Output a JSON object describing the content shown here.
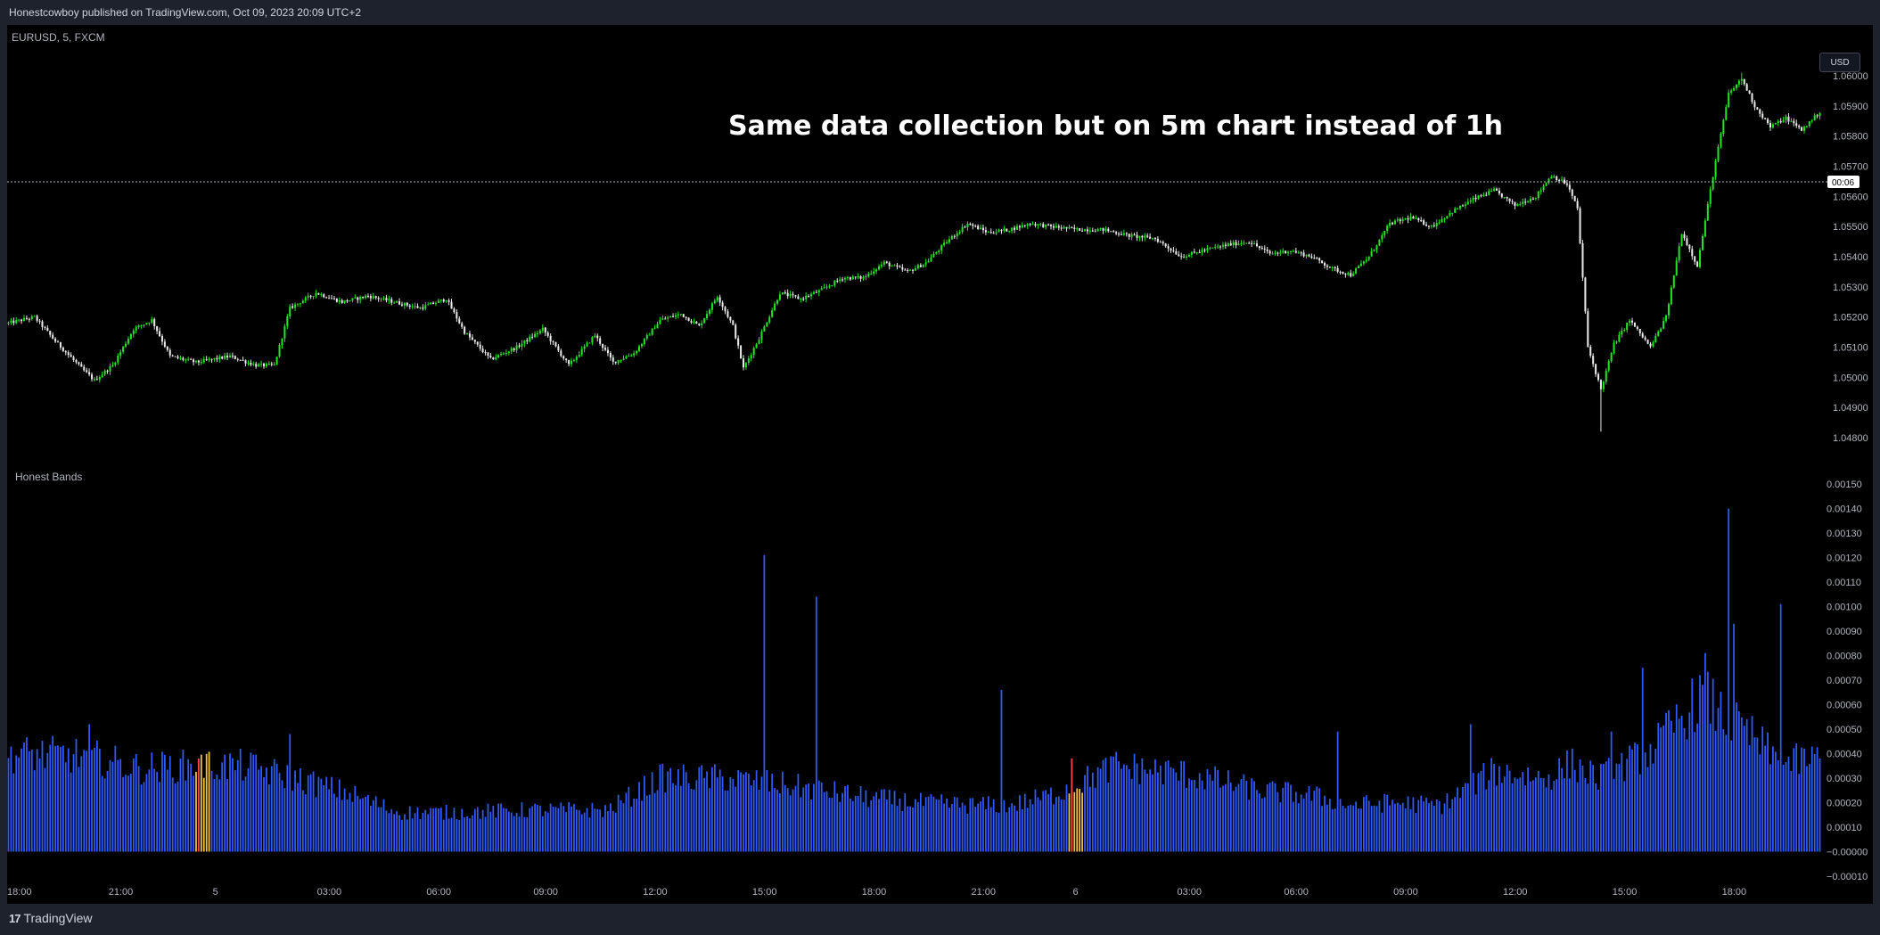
{
  "header": {
    "published_text": "Honestcowboy published on TradingView.com, Oct 09, 2023 20:09 UTC+2"
  },
  "footer": {
    "logo_mark": "17",
    "logo_text": "TradingView"
  },
  "price_scale": {
    "currency_button": "USD",
    "countdown_label": "00:06"
  },
  "colors": {
    "background": "#000000",
    "candle_up": "#22e422",
    "candle_down": "#e8e8e8",
    "histogram": "#2f5bff",
    "histogram_alert": "#f5c542",
    "histogram_alert_tip": "#ff4b4b",
    "price_line": "#b2b5be"
  },
  "chart_data": [
    {
      "type": "candlestick",
      "symbol_label": "EURUSD, 5, FXCM",
      "annotation": "Same data collection but on 5m chart instead of 1h",
      "timeframe": "5m",
      "x_tick_labels": [
        "18:00",
        "21:00",
        "5",
        "03:00",
        "06:00",
        "09:00",
        "12:00",
        "15:00",
        "18:00",
        "21:00",
        "6",
        "03:00",
        "06:00",
        "09:00",
        "12:00",
        "15:00",
        "18:00"
      ],
      "y_tick_labels": [
        "1.06000",
        "1.05900",
        "1.05800",
        "1.05700",
        "1.05600",
        "1.05500",
        "1.05400",
        "1.05300",
        "1.05200",
        "1.05100",
        "1.05000",
        "1.04900",
        "1.04800"
      ],
      "ylim": [
        1.0475,
        1.0605
      ],
      "current_price_line": 1.05648,
      "close_path": [
        [
          0,
          1.0518
        ],
        [
          10,
          1.052
        ],
        [
          18,
          1.0512
        ],
        [
          28,
          1.0503
        ],
        [
          33,
          1.0499
        ],
        [
          40,
          1.0504
        ],
        [
          48,
          1.0516
        ],
        [
          55,
          1.0519
        ],
        [
          62,
          1.0507
        ],
        [
          72,
          1.0505
        ],
        [
          85,
          1.0507
        ],
        [
          95,
          1.0504
        ],
        [
          102,
          1.0504
        ],
        [
          108,
          1.0523
        ],
        [
          118,
          1.0528
        ],
        [
          128,
          1.0525
        ],
        [
          138,
          1.0527
        ],
        [
          148,
          1.0525
        ],
        [
          158,
          1.0523
        ],
        [
          168,
          1.0526
        ],
        [
          175,
          1.0515
        ],
        [
          185,
          1.0506
        ],
        [
          195,
          1.051
        ],
        [
          205,
          1.0516
        ],
        [
          215,
          1.0504
        ],
        [
          225,
          1.0514
        ],
        [
          232,
          1.0505
        ],
        [
          240,
          1.0508
        ],
        [
          250,
          1.0519
        ],
        [
          258,
          1.0521
        ],
        [
          265,
          1.0517
        ],
        [
          272,
          1.0527
        ],
        [
          278,
          1.0517
        ],
        [
          282,
          1.0503
        ],
        [
          288,
          1.0513
        ],
        [
          296,
          1.0528
        ],
        [
          304,
          1.0526
        ],
        [
          312,
          1.0529
        ],
        [
          320,
          1.0533
        ],
        [
          328,
          1.0533
        ],
        [
          336,
          1.0538
        ],
        [
          345,
          1.0535
        ],
        [
          352,
          1.0538
        ],
        [
          360,
          1.0545
        ],
        [
          368,
          1.0551
        ],
        [
          376,
          1.0548
        ],
        [
          384,
          1.0549
        ],
        [
          392,
          1.0551
        ],
        [
          400,
          1.055
        ],
        [
          410,
          1.0549
        ],
        [
          420,
          1.0549
        ],
        [
          430,
          1.0547
        ],
        [
          440,
          1.0546
        ],
        [
          450,
          1.054
        ],
        [
          458,
          1.0542
        ],
        [
          468,
          1.0544
        ],
        [
          476,
          1.0545
        ],
        [
          484,
          1.0541
        ],
        [
          492,
          1.0542
        ],
        [
          500,
          1.054
        ],
        [
          508,
          1.0536
        ],
        [
          515,
          1.0534
        ],
        [
          522,
          1.054
        ],
        [
          530,
          1.0551
        ],
        [
          538,
          1.0553
        ],
        [
          546,
          1.055
        ],
        [
          554,
          1.0555
        ],
        [
          562,
          1.0559
        ],
        [
          570,
          1.0562
        ],
        [
          578,
          1.0557
        ],
        [
          586,
          1.056
        ],
        [
          592,
          1.0567
        ],
        [
          598,
          1.0564
        ],
        [
          602,
          1.0556
        ],
        [
          606,
          1.051
        ],
        [
          611,
          1.0496
        ],
        [
          616,
          1.0511
        ],
        [
          622,
          1.0519
        ],
        [
          630,
          1.051
        ],
        [
          636,
          1.052
        ],
        [
          642,
          1.0548
        ],
        [
          648,
          1.0537
        ],
        [
          654,
          1.0567
        ],
        [
          660,
          1.0594
        ],
        [
          665,
          1.0599
        ],
        [
          670,
          1.059
        ],
        [
          676,
          1.0583
        ],
        [
          682,
          1.0586
        ],
        [
          688,
          1.0582
        ],
        [
          695,
          1.0588
        ]
      ],
      "price_extremes": {
        "low": 1.0482,
        "high": 1.0601
      }
    },
    {
      "type": "bar",
      "title": "Honest Bands",
      "y_tick_labels": [
        "0.00150",
        "0.00140",
        "0.00130",
        "0.00120",
        "0.00110",
        "0.00100",
        "0.00090",
        "0.00080",
        "0.00070",
        "0.00060",
        "0.00050",
        "0.00040",
        "0.00030",
        "0.00020",
        "0.00010",
        "−0.00000",
        "−0.00010"
      ],
      "ylim": [
        -0.0001,
        0.0015
      ],
      "bar_count": 696,
      "level_path": [
        [
          0,
          0.0004
        ],
        [
          30,
          0.00039
        ],
        [
          50,
          0.00034
        ],
        [
          70,
          0.00035
        ],
        [
          90,
          0.00035
        ],
        [
          110,
          0.0003
        ],
        [
          130,
          0.00024
        ],
        [
          150,
          0.00016
        ],
        [
          170,
          0.00016
        ],
        [
          200,
          0.00017
        ],
        [
          230,
          0.00017
        ],
        [
          250,
          0.0003
        ],
        [
          275,
          0.0003
        ],
        [
          300,
          0.00027
        ],
        [
          330,
          0.00022
        ],
        [
          350,
          0.0002
        ],
        [
          370,
          0.00019
        ],
        [
          385,
          0.00019
        ],
        [
          400,
          0.00023
        ],
        [
          425,
          0.00035
        ],
        [
          450,
          0.00032
        ],
        [
          460,
          0.0003
        ],
        [
          480,
          0.00025
        ],
        [
          500,
          0.00023
        ],
        [
          515,
          0.00019
        ],
        [
          530,
          0.0002
        ],
        [
          550,
          0.00019
        ],
        [
          570,
          0.00033
        ],
        [
          590,
          0.0003
        ],
        [
          600,
          0.00036
        ],
        [
          610,
          0.0003
        ],
        [
          630,
          0.00041
        ],
        [
          650,
          0.00064
        ],
        [
          660,
          0.00053
        ],
        [
          670,
          0.00046
        ],
        [
          680,
          0.00036
        ],
        [
          695,
          0.00038
        ]
      ],
      "spikes": [
        [
          31,
          0.00052
        ],
        [
          108,
          0.00048
        ],
        [
          290,
          0.00121
        ],
        [
          310,
          0.00104
        ],
        [
          381,
          0.00066
        ],
        [
          510,
          0.00049
        ],
        [
          561,
          0.00052
        ],
        [
          615,
          0.00049
        ],
        [
          627,
          0.00075
        ],
        [
          651,
          0.00081
        ],
        [
          660,
          0.0014
        ],
        [
          662,
          0.00093
        ],
        [
          680,
          0.00101
        ]
      ],
      "alert_ranges": [
        [
          72,
          77
        ],
        [
          407,
          412
        ]
      ]
    }
  ]
}
